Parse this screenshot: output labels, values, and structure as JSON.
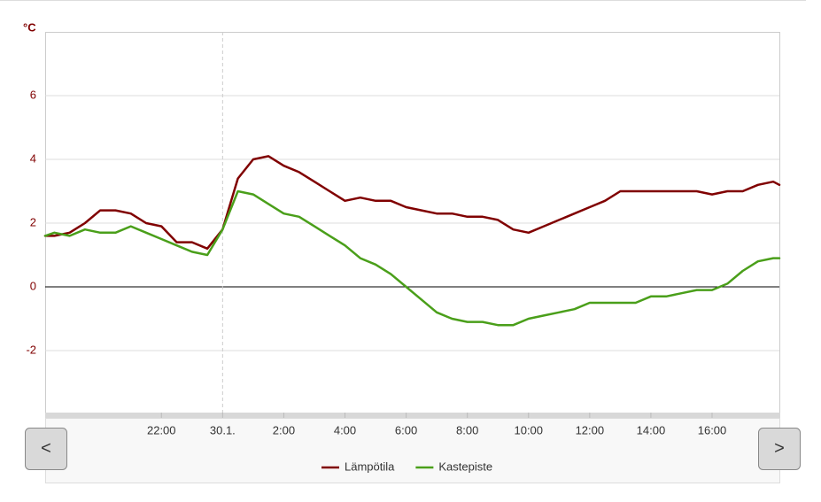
{
  "chart_data": {
    "type": "line",
    "y_label": "°C",
    "x": [
      -5.8,
      -5.5,
      -5,
      -4.5,
      -4,
      -3.5,
      -3,
      -2.5,
      -2,
      -1.5,
      -1,
      -0.5,
      0,
      0.5,
      1,
      1.5,
      2,
      2.5,
      3,
      3.5,
      4,
      4.5,
      5,
      5.5,
      6,
      6.5,
      7,
      7.5,
      8,
      8.5,
      9,
      9.5,
      10,
      10.5,
      11,
      11.5,
      12,
      12.5,
      13,
      13.5,
      14,
      14.5,
      15,
      15.5,
      16,
      16.5,
      17,
      17.5,
      18,
      18.2
    ],
    "series": [
      {
        "name": "Lämpötila",
        "color": "#800000",
        "values": [
          1.6,
          1.6,
          1.7,
          2.0,
          2.4,
          2.4,
          2.3,
          2.0,
          1.9,
          1.4,
          1.4,
          1.2,
          1.8,
          3.4,
          4.0,
          4.1,
          3.8,
          3.6,
          3.3,
          3.0,
          2.7,
          2.8,
          2.7,
          2.7,
          2.5,
          2.4,
          2.3,
          2.3,
          2.2,
          2.2,
          2.1,
          1.8,
          1.7,
          1.9,
          2.1,
          2.3,
          2.5,
          2.7,
          3.0,
          3.0,
          3.0,
          3.0,
          3.0,
          3.0,
          2.9,
          3.0,
          3.0,
          3.2,
          3.3,
          3.2
        ]
      },
      {
        "name": "Kastepiste",
        "color": "#4a9f1a",
        "values": [
          1.6,
          1.7,
          1.6,
          1.8,
          1.7,
          1.7,
          1.9,
          1.7,
          1.5,
          1.3,
          1.1,
          1.0,
          1.8,
          3.0,
          2.9,
          2.6,
          2.3,
          2.2,
          1.9,
          1.6,
          1.3,
          0.9,
          0.7,
          0.4,
          0.0,
          -0.4,
          -0.8,
          -1.0,
          -1.1,
          -1.1,
          -1.2,
          -1.2,
          -1.0,
          -0.9,
          -0.8,
          -0.7,
          -0.5,
          -0.5,
          -0.5,
          -0.5,
          -0.3,
          -0.3,
          -0.2,
          -0.1,
          -0.1,
          0.1,
          0.5,
          0.8,
          0.9,
          0.9
        ]
      }
    ],
    "xlim": [
      -5.8,
      18.2
    ],
    "xticks": [
      {
        "value": -2,
        "label": "22:00"
      },
      {
        "value": 0,
        "label": "30.1."
      },
      {
        "value": 2,
        "label": "2:00"
      },
      {
        "value": 4,
        "label": "4:00"
      },
      {
        "value": 6,
        "label": "6:00"
      },
      {
        "value": 8,
        "label": "8:00"
      },
      {
        "value": 10,
        "label": "10:00"
      },
      {
        "value": 12,
        "label": "12:00"
      },
      {
        "value": 14,
        "label": "14:00"
      },
      {
        "value": 16,
        "label": "16:00"
      }
    ],
    "xplotlines": [
      0
    ],
    "ylim": [
      -4,
      8
    ],
    "yticks": [
      -2,
      0,
      2,
      4,
      6
    ],
    "grid": true,
    "legend": "bottom",
    "buttons": [
      "<",
      ">"
    ]
  }
}
